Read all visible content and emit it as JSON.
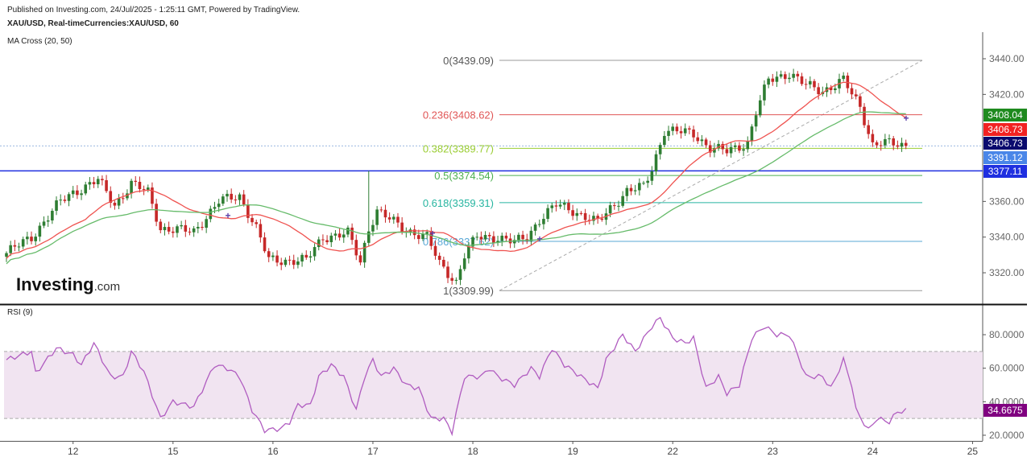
{
  "header": {
    "published": "Published on Investing.com, 24/Jul/2025 - 1:25:11 GMT, Powered by TradingView.",
    "symbol": "XAU/USD, Real-timeCurrencies:XAU/USD, 60",
    "indicator": "MA Cross (20, 50)"
  },
  "logo": {
    "main": "Investing",
    "suffix": ".com"
  },
  "colors": {
    "up": "#2e7d32",
    "down": "#c62828",
    "ma20": "#ef5350",
    "ma50": "#66bb6a",
    "rsi": "#b05cc0",
    "support": "#1f2fe0"
  },
  "chart_data": [
    {
      "type": "candlestick",
      "title": "XAU/USD, 60",
      "ylim": [
        3300,
        3452
      ],
      "yticks": [
        "3440.00",
        "3420.00",
        "3360.00",
        "3340.00",
        "3320.00"
      ],
      "ytick_values": [
        3440,
        3420,
        3360,
        3340,
        3320
      ],
      "xtick_labels": [
        "12",
        "15",
        "16",
        "17",
        "18",
        "19",
        "22",
        "23",
        "24",
        "25"
      ],
      "close_waypoints": [
        [
          0,
          3331
        ],
        [
          6,
          3340
        ],
        [
          13,
          3360
        ],
        [
          16,
          3365
        ],
        [
          22,
          3372
        ],
        [
          26,
          3358
        ],
        [
          30,
          3370
        ],
        [
          34,
          3365
        ],
        [
          37,
          3345
        ],
        [
          45,
          3343
        ],
        [
          51,
          3360
        ],
        [
          56,
          3363
        ],
        [
          60,
          3345
        ],
        [
          63,
          3327
        ],
        [
          72,
          3327
        ],
        [
          76,
          3340
        ],
        [
          82,
          3342
        ],
        [
          85,
          3326
        ],
        [
          87,
          3345
        ],
        [
          89,
          3355
        ],
        [
          95,
          3345
        ],
        [
          101,
          3340
        ],
        [
          104,
          3325
        ],
        [
          108,
          3315
        ],
        [
          110,
          3330
        ],
        [
          113,
          3340
        ],
        [
          118,
          3340
        ],
        [
          122,
          3337
        ],
        [
          125,
          3340
        ],
        [
          128,
          3350
        ],
        [
          132,
          3358
        ],
        [
          136,
          3355
        ],
        [
          142,
          3348
        ],
        [
          145,
          3356
        ],
        [
          149,
          3366
        ],
        [
          153,
          3368
        ],
        [
          155,
          3378
        ],
        [
          158,
          3400
        ],
        [
          165,
          3398
        ],
        [
          169,
          3390
        ],
        [
          173,
          3388
        ],
        [
          178,
          3393
        ],
        [
          180,
          3410
        ],
        [
          183,
          3428
        ],
        [
          188,
          3432
        ],
        [
          192,
          3425
        ],
        [
          196,
          3422
        ],
        [
          201,
          3428
        ],
        [
          203,
          3420
        ],
        [
          205,
          3413
        ],
        [
          208,
          3392
        ],
        [
          210,
          3393
        ],
        [
          216,
          3391
        ]
      ],
      "moving_averages": [
        {
          "name": "MA 20",
          "period": 20
        },
        {
          "name": "MA 50",
          "period": 50
        }
      ],
      "fibonacci": [
        {
          "label": "0(3439.09)",
          "value": 3439.09,
          "color": "#999999"
        },
        {
          "label": "0.236(3408.62)",
          "value": 3408.62,
          "color": "#e05555"
        },
        {
          "label": "0.382(3389.77)",
          "value": 3389.77,
          "color": "#9acd32"
        },
        {
          "label": "0.5(3374.54)",
          "value": 3374.54,
          "color": "#4caf50"
        },
        {
          "label": "0.618(3359.31)",
          "value": 3359.31,
          "color": "#26b5a0"
        },
        {
          "label": "0.786(3337.62)",
          "value": 3337.62,
          "color": "#5aa9d6"
        },
        {
          "label": "1(3309.99)",
          "value": 3309.99,
          "color": "#999999"
        }
      ],
      "horizontal_lines": [
        {
          "value": 3377.11,
          "style": "solid"
        },
        {
          "value": 3391.12,
          "style": "dotted"
        }
      ],
      "price_tags": [
        {
          "label": "3408.04",
          "color": "#1e8a1e"
        },
        {
          "label": "3406.73",
          "color": "#f22222"
        },
        {
          "label": "3406.73",
          "color": "#0a0a6e"
        },
        {
          "label": "3391.12",
          "color": "#4a86e8"
        },
        {
          "label": "3377.11",
          "color": "#1f2fe0"
        }
      ]
    },
    {
      "type": "line",
      "title": "RSI (9)",
      "ylim": [
        14,
        96
      ],
      "yticks": [
        "80.0000",
        "60.0000",
        "40.0000",
        "20.0000"
      ],
      "ytick_values": [
        80,
        60,
        40,
        20
      ],
      "band": [
        30,
        70
      ],
      "last_value": "34.6675",
      "waypoints": [
        [
          0,
          65
        ],
        [
          6,
          70
        ],
        [
          7,
          57
        ],
        [
          12,
          72
        ],
        [
          16,
          68
        ],
        [
          18,
          62
        ],
        [
          21,
          75
        ],
        [
          25,
          55
        ],
        [
          28,
          55
        ],
        [
          30,
          70
        ],
        [
          33,
          58
        ],
        [
          37,
          30
        ],
        [
          40,
          40
        ],
        [
          45,
          37
        ],
        [
          50,
          62
        ],
        [
          53,
          60
        ],
        [
          56,
          55
        ],
        [
          59,
          35
        ],
        [
          62,
          23
        ],
        [
          66,
          24
        ],
        [
          68,
          28
        ],
        [
          70,
          38
        ],
        [
          73,
          38
        ],
        [
          75,
          55
        ],
        [
          78,
          62
        ],
        [
          81,
          55
        ],
        [
          84,
          35
        ],
        [
          86,
          55
        ],
        [
          88,
          65
        ],
        [
          90,
          55
        ],
        [
          93,
          60
        ],
        [
          96,
          50
        ],
        [
          99,
          48
        ],
        [
          102,
          30
        ],
        [
          105,
          30
        ],
        [
          107,
          22
        ],
        [
          110,
          55
        ],
        [
          114,
          55
        ],
        [
          116,
          60
        ],
        [
          118,
          55
        ],
        [
          122,
          50
        ],
        [
          126,
          60
        ],
        [
          128,
          55
        ],
        [
          131,
          72
        ],
        [
          134,
          62
        ],
        [
          138,
          55
        ],
        [
          142,
          48
        ],
        [
          144,
          65
        ],
        [
          148,
          80
        ],
        [
          151,
          70
        ],
        [
          155,
          85
        ],
        [
          157,
          90
        ],
        [
          160,
          78
        ],
        [
          163,
          75
        ],
        [
          165,
          78
        ],
        [
          168,
          48
        ],
        [
          171,
          55
        ],
        [
          173,
          45
        ],
        [
          176,
          50
        ],
        [
          179,
          78
        ],
        [
          182,
          85
        ],
        [
          185,
          80
        ],
        [
          188,
          80
        ],
        [
          190,
          68
        ],
        [
          192,
          55
        ],
        [
          196,
          55
        ],
        [
          198,
          48
        ],
        [
          201,
          65
        ],
        [
          203,
          50
        ],
        [
          204,
          35
        ],
        [
          207,
          23
        ],
        [
          209,
          30
        ],
        [
          212,
          28
        ],
        [
          214,
          34
        ],
        [
          216,
          34.67
        ]
      ]
    }
  ],
  "rsi_label": "RSI (9)"
}
